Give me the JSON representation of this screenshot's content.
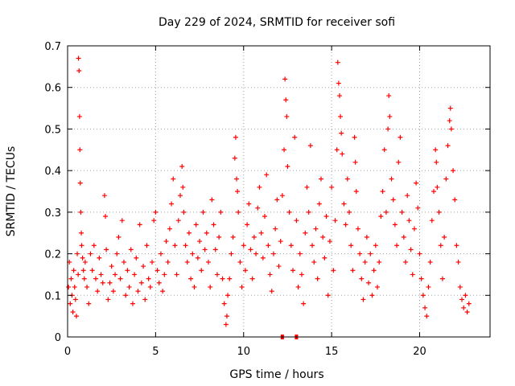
{
  "chart_data": {
    "type": "scatter",
    "title": "Day 229 of 2024, SRMTID for receiver sofi",
    "xlabel": "GPS time / hours",
    "ylabel": "SRMTID / TECUs",
    "xlim": [
      0,
      24
    ],
    "ylim": [
      0,
      0.7
    ],
    "xticks": [
      0,
      5,
      10,
      15,
      20
    ],
    "yticks": [
      0,
      0.1,
      0.2,
      0.3,
      0.4,
      0.5,
      0.6,
      0.7
    ],
    "grid": true,
    "marker": "+",
    "color": "#ff0000",
    "series": [
      {
        "name": "SRMTID",
        "points": [
          [
            0.05,
            0.12
          ],
          [
            0.1,
            0.18
          ],
          [
            0.15,
            0.08
          ],
          [
            0.2,
            0.14
          ],
          [
            0.25,
            0.1
          ],
          [
            0.3,
            0.06
          ],
          [
            0.35,
            0.16
          ],
          [
            0.4,
            0.12
          ],
          [
            0.45,
            0.09
          ],
          [
            0.5,
            0.05
          ],
          [
            0.55,
            0.2
          ],
          [
            0.6,
            0.15
          ],
          [
            0.62,
            0.67
          ],
          [
            0.65,
            0.64
          ],
          [
            0.68,
            0.53
          ],
          [
            0.7,
            0.45
          ],
          [
            0.72,
            0.37
          ],
          [
            0.75,
            0.3
          ],
          [
            0.78,
            0.25
          ],
          [
            0.8,
            0.22
          ],
          [
            0.85,
            0.19
          ],
          [
            0.9,
            0.16
          ],
          [
            0.95,
            0.14
          ],
          [
            1.0,
            0.18
          ],
          [
            1.1,
            0.12
          ],
          [
            1.2,
            0.08
          ],
          [
            1.3,
            0.2
          ],
          [
            1.4,
            0.16
          ],
          [
            1.5,
            0.22
          ],
          [
            1.6,
            0.14
          ],
          [
            1.7,
            0.11
          ],
          [
            1.8,
            0.19
          ],
          [
            1.9,
            0.15
          ],
          [
            2.0,
            0.13
          ],
          [
            2.1,
            0.34
          ],
          [
            2.15,
            0.29
          ],
          [
            2.2,
            0.21
          ],
          [
            2.3,
            0.09
          ],
          [
            2.4,
            0.13
          ],
          [
            2.5,
            0.17
          ],
          [
            2.6,
            0.11
          ],
          [
            2.7,
            0.15
          ],
          [
            2.8,
            0.2
          ],
          [
            2.9,
            0.24
          ],
          [
            3.0,
            0.14
          ],
          [
            3.1,
            0.28
          ],
          [
            3.2,
            0.18
          ],
          [
            3.3,
            0.1
          ],
          [
            3.4,
            0.16
          ],
          [
            3.5,
            0.12
          ],
          [
            3.6,
            0.21
          ],
          [
            3.7,
            0.08
          ],
          [
            3.8,
            0.15
          ],
          [
            3.9,
            0.19
          ],
          [
            4.0,
            0.11
          ],
          [
            4.1,
            0.27
          ],
          [
            4.2,
            0.13
          ],
          [
            4.3,
            0.17
          ],
          [
            4.4,
            0.09
          ],
          [
            4.5,
            0.22
          ],
          [
            4.6,
            0.14
          ],
          [
            4.7,
            0.12
          ],
          [
            4.8,
            0.18
          ],
          [
            4.9,
            0.28
          ],
          [
            5.0,
            0.3
          ],
          [
            5.1,
            0.16
          ],
          [
            5.2,
            0.13
          ],
          [
            5.3,
            0.2
          ],
          [
            5.4,
            0.11
          ],
          [
            5.5,
            0.15
          ],
          [
            5.6,
            0.23
          ],
          [
            5.7,
            0.18
          ],
          [
            5.8,
            0.26
          ],
          [
            5.9,
            0.32
          ],
          [
            6.0,
            0.38
          ],
          [
            6.1,
            0.22
          ],
          [
            6.2,
            0.15
          ],
          [
            6.3,
            0.28
          ],
          [
            6.4,
            0.34
          ],
          [
            6.5,
            0.41
          ],
          [
            6.55,
            0.36
          ],
          [
            6.6,
            0.3
          ],
          [
            6.7,
            0.22
          ],
          [
            6.8,
            0.18
          ],
          [
            6.9,
            0.25
          ],
          [
            7.0,
            0.14
          ],
          [
            7.1,
            0.2
          ],
          [
            7.2,
            0.12
          ],
          [
            7.3,
            0.27
          ],
          [
            7.4,
            0.19
          ],
          [
            7.5,
            0.23
          ],
          [
            7.6,
            0.16
          ],
          [
            7.7,
            0.3
          ],
          [
            7.8,
            0.21
          ],
          [
            7.9,
            0.25
          ],
          [
            8.0,
            0.18
          ],
          [
            8.1,
            0.12
          ],
          [
            8.2,
            0.33
          ],
          [
            8.3,
            0.27
          ],
          [
            8.4,
            0.21
          ],
          [
            8.5,
            0.15
          ],
          [
            8.6,
            0.24
          ],
          [
            8.7,
            0.3
          ],
          [
            8.8,
            0.14
          ],
          [
            8.9,
            0.08
          ],
          [
            9.0,
            0.03
          ],
          [
            9.05,
            0.05
          ],
          [
            9.1,
            0.1
          ],
          [
            9.2,
            0.14
          ],
          [
            9.3,
            0.2
          ],
          [
            9.4,
            0.24
          ],
          [
            9.5,
            0.43
          ],
          [
            9.55,
            0.48
          ],
          [
            9.6,
            0.38
          ],
          [
            9.65,
            0.35
          ],
          [
            9.7,
            0.3
          ],
          [
            9.8,
            0.18
          ],
          [
            9.9,
            0.12
          ],
          [
            10.0,
            0.22
          ],
          [
            10.1,
            0.16
          ],
          [
            10.2,
            0.27
          ],
          [
            10.3,
            0.32
          ],
          [
            10.4,
            0.21
          ],
          [
            10.5,
            0.14
          ],
          [
            10.6,
            0.24
          ],
          [
            10.7,
            0.2
          ],
          [
            10.8,
            0.31
          ],
          [
            10.9,
            0.36
          ],
          [
            11.0,
            0.25
          ],
          [
            11.1,
            0.19
          ],
          [
            11.2,
            0.29
          ],
          [
            11.3,
            0.39
          ],
          [
            11.4,
            0.22
          ],
          [
            11.5,
            0.15
          ],
          [
            11.6,
            0.11
          ],
          [
            11.7,
            0.2
          ],
          [
            11.8,
            0.26
          ],
          [
            11.9,
            0.33
          ],
          [
            12.0,
            0.17
          ],
          [
            12.1,
            0.23
          ],
          [
            12.2,
            0.34
          ],
          [
            12.3,
            0.45
          ],
          [
            12.35,
            0.62
          ],
          [
            12.4,
            0.57
          ],
          [
            12.45,
            0.53
          ],
          [
            12.5,
            0.41
          ],
          [
            12.6,
            0.3
          ],
          [
            12.7,
            0.22
          ],
          [
            12.8,
            0.16
          ],
          [
            12.9,
            0.48
          ],
          [
            13.0,
            0.28
          ],
          [
            13.1,
            0.12
          ],
          [
            13.2,
            0.2
          ],
          [
            13.3,
            0.15
          ],
          [
            13.4,
            0.08
          ],
          [
            13.5,
            0.25
          ],
          [
            13.6,
            0.36
          ],
          [
            13.7,
            0.3
          ],
          [
            13.8,
            0.46
          ],
          [
            13.9,
            0.22
          ],
          [
            14.0,
            0.18
          ],
          [
            14.1,
            0.26
          ],
          [
            14.2,
            0.14
          ],
          [
            14.3,
            0.32
          ],
          [
            14.4,
            0.38
          ],
          [
            14.5,
            0.24
          ],
          [
            14.6,
            0.19
          ],
          [
            14.7,
            0.29
          ],
          [
            14.8,
            0.1
          ],
          [
            14.9,
            0.23
          ],
          [
            15.0,
            0.36
          ],
          [
            15.1,
            0.16
          ],
          [
            15.2,
            0.28
          ],
          [
            15.3,
            0.45
          ],
          [
            15.35,
            0.66
          ],
          [
            15.4,
            0.61
          ],
          [
            15.45,
            0.58
          ],
          [
            15.5,
            0.53
          ],
          [
            15.55,
            0.49
          ],
          [
            15.6,
            0.44
          ],
          [
            15.7,
            0.32
          ],
          [
            15.8,
            0.27
          ],
          [
            15.9,
            0.38
          ],
          [
            16.0,
            0.3
          ],
          [
            16.1,
            0.22
          ],
          [
            16.2,
            0.16
          ],
          [
            16.3,
            0.48
          ],
          [
            16.35,
            0.42
          ],
          [
            16.4,
            0.35
          ],
          [
            16.5,
            0.26
          ],
          [
            16.6,
            0.2
          ],
          [
            16.7,
            0.14
          ],
          [
            16.8,
            0.09
          ],
          [
            16.9,
            0.18
          ],
          [
            17.0,
            0.24
          ],
          [
            17.1,
            0.13
          ],
          [
            17.2,
            0.2
          ],
          [
            17.3,
            0.1
          ],
          [
            17.4,
            0.16
          ],
          [
            17.5,
            0.22
          ],
          [
            17.6,
            0.12
          ],
          [
            17.7,
            0.18
          ],
          [
            17.8,
            0.29
          ],
          [
            17.9,
            0.35
          ],
          [
            18.0,
            0.45
          ],
          [
            18.1,
            0.3
          ],
          [
            18.2,
            0.5
          ],
          [
            18.25,
            0.58
          ],
          [
            18.3,
            0.53
          ],
          [
            18.4,
            0.38
          ],
          [
            18.5,
            0.33
          ],
          [
            18.6,
            0.27
          ],
          [
            18.7,
            0.22
          ],
          [
            18.8,
            0.42
          ],
          [
            18.9,
            0.48
          ],
          [
            19.0,
            0.3
          ],
          [
            19.1,
            0.24
          ],
          [
            19.2,
            0.18
          ],
          [
            19.3,
            0.34
          ],
          [
            19.4,
            0.28
          ],
          [
            19.5,
            0.21
          ],
          [
            19.6,
            0.15
          ],
          [
            19.7,
            0.26
          ],
          [
            19.8,
            0.37
          ],
          [
            19.9,
            0.31
          ],
          [
            20.0,
            0.2
          ],
          [
            20.1,
            0.14
          ],
          [
            20.2,
            0.1
          ],
          [
            20.3,
            0.07
          ],
          [
            20.4,
            0.05
          ],
          [
            20.5,
            0.12
          ],
          [
            20.6,
            0.18
          ],
          [
            20.7,
            0.28
          ],
          [
            20.8,
            0.35
          ],
          [
            20.9,
            0.45
          ],
          [
            20.95,
            0.42
          ],
          [
            21.0,
            0.36
          ],
          [
            21.1,
            0.3
          ],
          [
            21.2,
            0.22
          ],
          [
            21.3,
            0.14
          ],
          [
            21.4,
            0.24
          ],
          [
            21.5,
            0.38
          ],
          [
            21.6,
            0.46
          ],
          [
            21.7,
            0.52
          ],
          [
            21.75,
            0.55
          ],
          [
            21.8,
            0.5
          ],
          [
            21.9,
            0.4
          ],
          [
            22.0,
            0.33
          ],
          [
            22.1,
            0.22
          ],
          [
            22.2,
            0.18
          ],
          [
            22.3,
            0.12
          ],
          [
            22.4,
            0.09
          ],
          [
            22.5,
            0.07
          ],
          [
            22.6,
            0.1
          ],
          [
            22.7,
            0.06
          ],
          [
            22.8,
            0.08
          ]
        ]
      }
    ],
    "annotations": [
      {
        "type": "x-marker",
        "x": 12.2
      },
      {
        "type": "x-marker",
        "x": 13.0
      }
    ]
  }
}
